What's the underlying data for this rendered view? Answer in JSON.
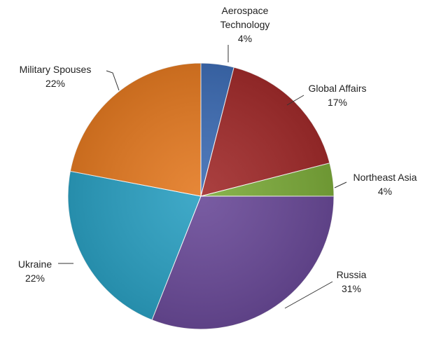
{
  "chart_data": {
    "type": "pie",
    "title": "",
    "slices": [
      {
        "name": "Aerospace Technology",
        "label_lines": [
          "Aerospace",
          "Technology"
        ],
        "value": 4,
        "value_label": "4%",
        "color": "#3e6db5"
      },
      {
        "name": "Global Affairs",
        "label_lines": [
          "Global Affairs"
        ],
        "value": 17,
        "value_label": "17%",
        "color": "#a12b2b"
      },
      {
        "name": "Northeast Asia",
        "label_lines": [
          "Northeast Asia"
        ],
        "value": 4,
        "value_label": "4%",
        "color": "#7cab3a"
      },
      {
        "name": "Russia",
        "label_lines": [
          "Russia"
        ],
        "value": 31,
        "value_label": "31%",
        "color": "#6a4a98"
      },
      {
        "name": "Ukraine",
        "label_lines": [
          "Ukraine"
        ],
        "value": 22,
        "value_label": "22%",
        "color": "#2ba0c2"
      },
      {
        "name": "Military Spouses",
        "label_lines": [
          "Military Spouses"
        ],
        "value": 22,
        "value_label": "22%",
        "color": "#e47a22"
      }
    ],
    "start_angle_deg": -90,
    "direction": "clockwise",
    "legend": "none",
    "data_labels": "outside-with-leader-lines"
  }
}
